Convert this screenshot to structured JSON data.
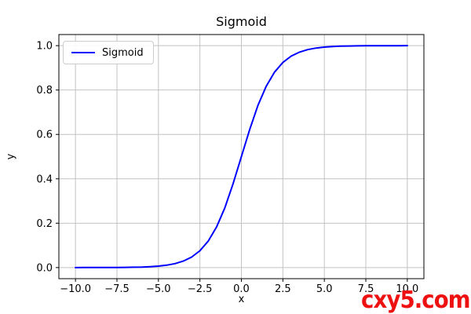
{
  "chart_data": {
    "type": "line",
    "title": "Sigmoid",
    "xlabel": "x",
    "ylabel": "y",
    "xlim": [
      -11,
      11
    ],
    "ylim": [
      -0.05,
      1.05
    ],
    "grid": true,
    "legend_position": "upper-left",
    "xticks": {
      "values": [
        -10,
        -7.5,
        -5,
        -2.5,
        0,
        2.5,
        5,
        7.5,
        10
      ],
      "labels": [
        "−10.0",
        "−7.5",
        "−5.0",
        "−2.5",
        "0.0",
        "2.5",
        "5.0",
        "7.5",
        "10.0"
      ]
    },
    "yticks": {
      "values": [
        0,
        0.2,
        0.4,
        0.6,
        0.8,
        1.0
      ],
      "labels": [
        "0.0",
        "0.2",
        "0.4",
        "0.6",
        "0.8",
        "1.0"
      ]
    },
    "series": [
      {
        "name": "Sigmoid",
        "color": "#0000ff",
        "x": [
          -10,
          -9.5,
          -9,
          -8.5,
          -8,
          -7.5,
          -7,
          -6.5,
          -6,
          -5.5,
          -5,
          -4.5,
          -4,
          -3.5,
          -3,
          -2.5,
          -2,
          -1.5,
          -1,
          -0.5,
          0,
          0.5,
          1,
          1.5,
          2,
          2.5,
          3,
          3.5,
          4,
          4.5,
          5,
          5.5,
          6,
          6.5,
          7,
          7.5,
          8,
          8.5,
          9,
          9.5,
          10
        ],
        "y": [
          0.0,
          0.0001,
          0.0001,
          0.0002,
          0.0003,
          0.0006,
          0.0009,
          0.0015,
          0.0025,
          0.0041,
          0.0067,
          0.011,
          0.018,
          0.0293,
          0.0474,
          0.0759,
          0.1192,
          0.1824,
          0.2689,
          0.3775,
          0.5,
          0.6225,
          0.7311,
          0.8176,
          0.8808,
          0.9241,
          0.9526,
          0.9707,
          0.982,
          0.989,
          0.9933,
          0.9959,
          0.9975,
          0.9985,
          0.9991,
          0.9994,
          0.9997,
          0.9998,
          0.9999,
          0.9999,
          1.0
        ]
      }
    ]
  },
  "colors": {
    "grid": "#c2c2c2",
    "frame": "#000000",
    "tick_label": "#000000",
    "line": "#0000ff"
  },
  "watermark": {
    "text": "cxy5.com",
    "color": "#ee1111"
  }
}
